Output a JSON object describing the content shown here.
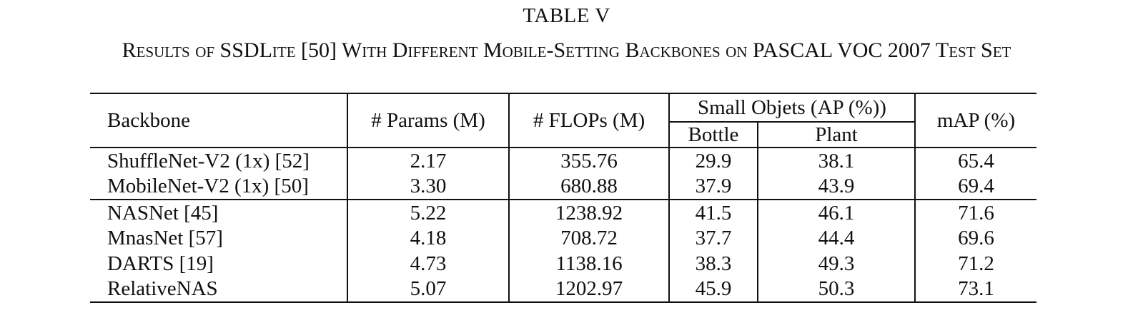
{
  "table_label": "TABLE V",
  "caption": "Results of SSDLite [50] With Different Mobile-Setting Backbones on PASCAL VOC 2007 Test Set",
  "headers": {
    "backbone": "Backbone",
    "params": "# Params (M)",
    "flops": "# FLOPs (M)",
    "small_objects": "Small Objets (AP (%))",
    "bottle": "Bottle",
    "plant": "Plant",
    "map": "mAP (%)"
  },
  "group1": [
    {
      "backbone": "ShuffleNet-V2 (1x) [52]",
      "params": "2.17",
      "flops": "355.76",
      "bottle": "29.9",
      "plant": "38.1",
      "map": "65.4"
    },
    {
      "backbone": "MobileNet-V2 (1x) [50]",
      "params": "3.30",
      "flops": "680.88",
      "bottle": "37.9",
      "plant": "43.9",
      "map": "69.4"
    }
  ],
  "group2": [
    {
      "backbone": "NASNet [45]",
      "params": "5.22",
      "flops": "1238.92",
      "bottle": "41.5",
      "plant": "46.1",
      "map": "71.6"
    },
    {
      "backbone": "MnasNet [57]",
      "params": "4.18",
      "flops": "708.72",
      "bottle": "37.7",
      "plant": "44.4",
      "map": "69.6"
    },
    {
      "backbone": "DARTS [19]",
      "params": "4.73",
      "flops": "1138.16",
      "bottle": "38.3",
      "plant": "49.3",
      "map": "71.2"
    },
    {
      "backbone": "RelativeNAS",
      "params": "5.07",
      "flops": "1202.97",
      "bottle": "45.9",
      "plant": "50.3",
      "map": "73.1"
    }
  ]
}
